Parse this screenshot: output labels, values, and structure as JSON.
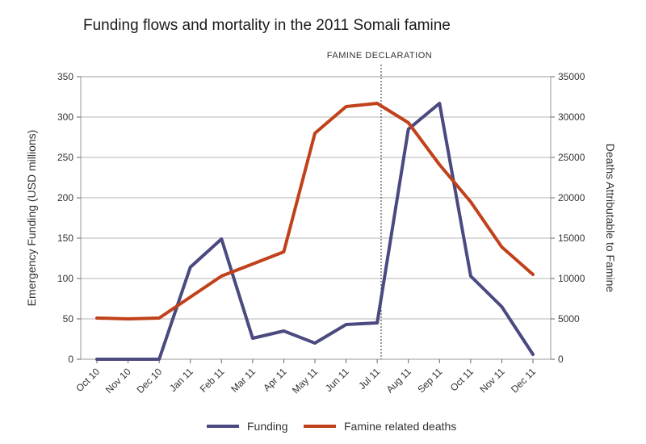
{
  "chart_data": {
    "type": "line",
    "title": "Funding flows and mortality in the 2011 Somali famine",
    "categories": [
      "Oct 10",
      "Nov 10",
      "Dec 10",
      "Jan 11",
      "Feb 11",
      "Mar 11",
      "Apr 11",
      "May 11",
      "Jun 11",
      "Jul 11",
      "Aug 11",
      "Sep 11",
      "Oct 11",
      "Nov 11",
      "Dec 11"
    ],
    "ylabel_left": "Emergency Funding (USD millions)",
    "ylabel_right": "Deaths Attributable to Famine",
    "ylim_left": [
      0,
      350
    ],
    "yticks_left": [
      "0",
      "50",
      "100",
      "150",
      "200",
      "250",
      "300",
      "350"
    ],
    "ylim_right": [
      0,
      35000
    ],
    "yticks_right": [
      "0",
      "5000",
      "10000",
      "15000",
      "20000",
      "25000",
      "30000",
      "35000"
    ],
    "grid": true,
    "legend_position": "bottom",
    "annotation": {
      "text": "FAMINE DECLARATION",
      "x_between": [
        "Jul 11",
        "Aug 11"
      ]
    },
    "series": [
      {
        "name": "Funding",
        "axis": "left",
        "color": "#4a4a80",
        "values": [
          0,
          0,
          0,
          114,
          149,
          26,
          35,
          20,
          43,
          45,
          285,
          317,
          103,
          65,
          6
        ]
      },
      {
        "name": "Famine related deaths",
        "axis": "right",
        "color": "#c0411a",
        "values": [
          5100,
          5000,
          5100,
          7700,
          10300,
          11800,
          13300,
          28000,
          31300,
          31700,
          29300,
          24100,
          19500,
          13900,
          10500
        ]
      }
    ]
  }
}
